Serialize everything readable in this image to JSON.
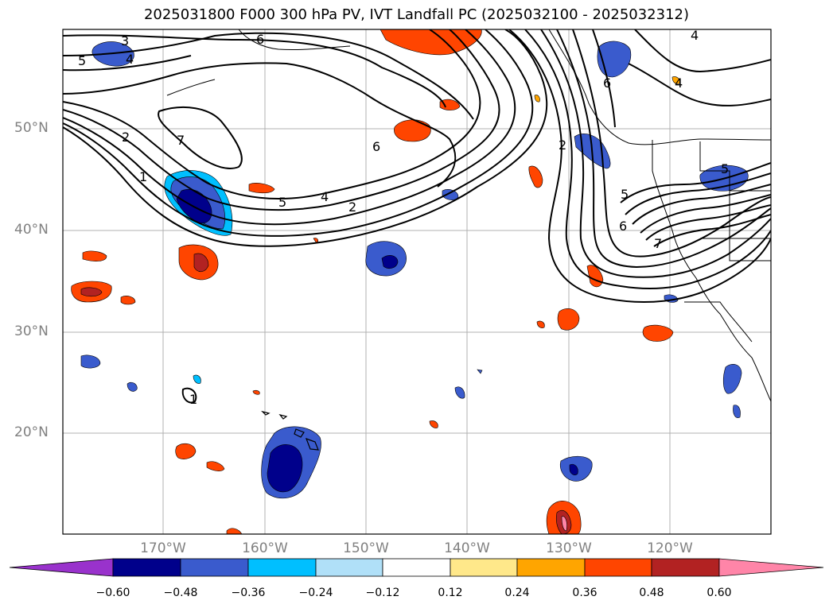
{
  "title": "2025031800 F000 300 hPa PV, IVT Landfall PC (2025032100 - 2025032312)",
  "lat_labels": [
    "50°N",
    "40°N",
    "30°N",
    "20°N"
  ],
  "lon_labels": [
    "170°W",
    "160°W",
    "150°W",
    "140°W",
    "130°W",
    "120°W"
  ],
  "colorbar": {
    "ticks": [
      "−0.60",
      "−0.48",
      "−0.36",
      "−0.24",
      "−0.12",
      "0.12",
      "0.24",
      "0.36",
      "0.48",
      "0.60"
    ],
    "colors": [
      "#9932cc",
      "#00008b",
      "#3a5bcd",
      "#00bfff",
      "#b0e0f8",
      "#ffffff",
      "#ffe88a",
      "#ffa500",
      "#ff4500",
      "#b22222",
      "#ff85a8"
    ]
  },
  "contour_labels": [
    "3",
    "4",
    "5",
    "6",
    "7",
    "2",
    "1",
    "6",
    "4",
    "5",
    "4",
    "2",
    "6",
    "2",
    "5",
    "6",
    "7",
    "5",
    "4",
    "1"
  ],
  "colors": {
    "neg_dark": "#00008b",
    "neg_mid": "#3a5bcd",
    "neg_light": "#00bfff",
    "pos_light": "#ffa500",
    "pos_mid": "#ff4500",
    "pos_dark": "#b22222",
    "pos_max": "#ff85a8",
    "grid": "#b0b0b0"
  }
}
